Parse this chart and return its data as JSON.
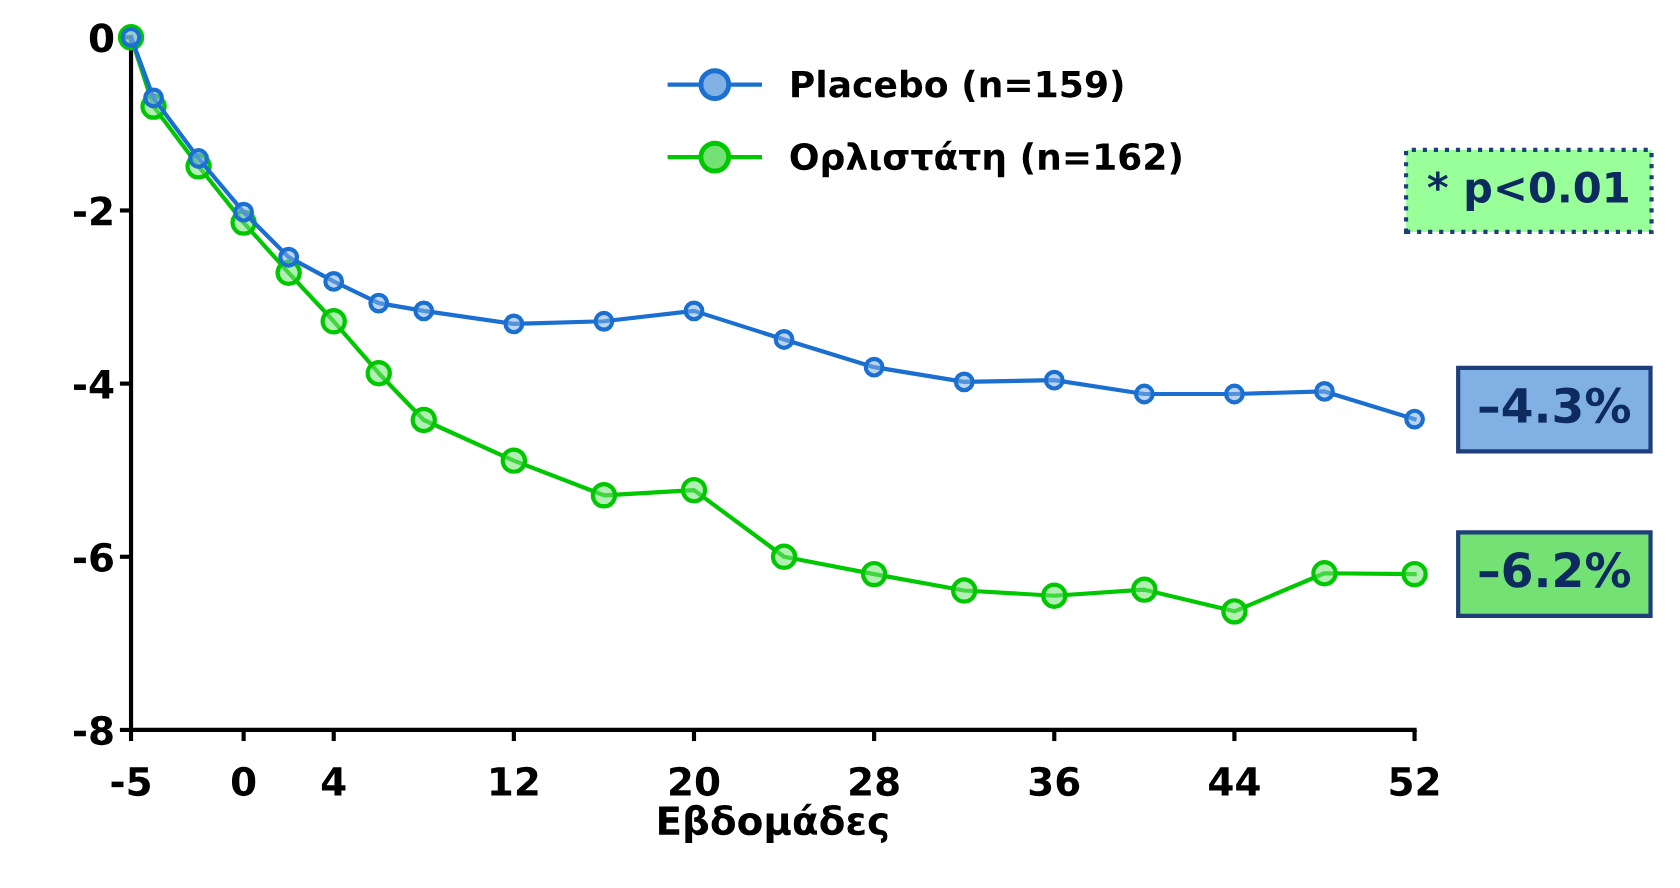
{
  "chart_data": {
    "type": "line",
    "xlabel": "Εβδομάδες",
    "x": [
      -5,
      -4,
      -2,
      0,
      2,
      4,
      6,
      8,
      12,
      16,
      20,
      24,
      28,
      32,
      36,
      40,
      44,
      48,
      52
    ],
    "series": [
      {
        "name": "Placebo (n=159)",
        "color": "#1a6fd0",
        "values": [
          0,
          -0.7,
          -1.4,
          -2.02,
          -2.54,
          -2.82,
          -3.07,
          -3.16,
          -3.31,
          -3.28,
          -3.16,
          -3.49,
          -3.81,
          -3.98,
          -3.96,
          -4.12,
          -4.12,
          -4.09,
          -4.41
        ]
      },
      {
        "name": "Ορλιστάτη (n=162)",
        "color": "#00c800",
        "values": [
          0,
          -0.8,
          -1.49,
          -2.14,
          -2.72,
          -3.28,
          -3.88,
          -4.42,
          -4.89,
          -5.29,
          -5.23,
          -6.0,
          -6.2,
          -6.39,
          -6.45,
          -6.38,
          -6.63,
          -6.19,
          -6.2
        ]
      }
    ],
    "xlim": [
      -5,
      52
    ],
    "xticks": [
      -5,
      0,
      4,
      12,
      20,
      28,
      36,
      44,
      52
    ],
    "ylim": [
      -8,
      0
    ],
    "yticks": [
      -8,
      -6,
      -4,
      -2,
      0
    ],
    "marker": "circle",
    "line_style": "solid",
    "grid": false,
    "legend": "top",
    "annotations": [
      "* p<0.01",
      {
        "text": "–4.3%",
        "x": 52,
        "y": -4.3
      },
      {
        "text": "–6.2%",
        "x": 52,
        "y": -6.2
      }
    ]
  }
}
